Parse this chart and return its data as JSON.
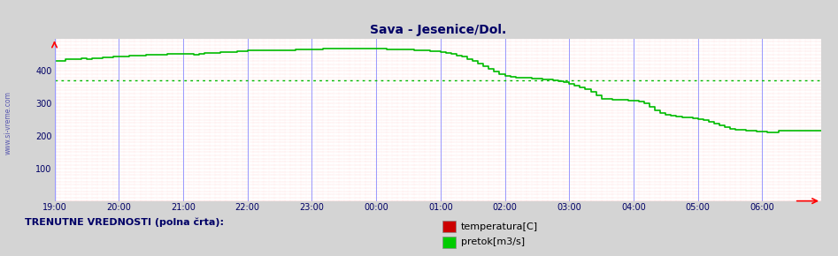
{
  "title": "Sava - Jesenice/Dol.",
  "bg_color": "#ffffff",
  "plot_bg_color": "#ffffff",
  "outer_bg_color": "#d4d4d4",
  "avg_line_value": 370,
  "avg_line_color": "#00bb00",
  "flow_line_color": "#00bb00",
  "grid_red": "#ff9999",
  "grid_blue": "#9999ff",
  "ylim": [
    0,
    500
  ],
  "xlim_max": 143,
  "x_labels": [
    "19:00",
    "20:00",
    "21:00",
    "22:00",
    "23:00",
    "00:00",
    "01:00",
    "02:00",
    "03:00",
    "04:00",
    "05:00",
    "06:00"
  ],
  "yticks": [
    100,
    200,
    300,
    400
  ],
  "side_label": "www.si-vreme.com",
  "legend_label1": "temperatura[C]",
  "legend_label2": "pretok[m3/s]",
  "legend_color1": "#cc0000",
  "legend_color2": "#00cc00",
  "footer_text": "TRENUTNE VREDNOSTI (polna črta):",
  "flow_data": [
    430,
    432,
    435,
    436,
    437,
    438,
    437,
    438,
    440,
    441,
    442,
    443,
    444,
    445,
    446,
    447,
    448,
    449,
    449,
    450,
    451,
    452,
    452,
    453,
    453,
    452,
    451,
    453,
    454,
    455,
    456,
    457,
    458,
    459,
    460,
    461,
    462,
    462,
    463,
    463,
    462,
    462,
    463,
    464,
    464,
    465,
    466,
    466,
    467,
    467,
    468,
    468,
    468,
    469,
    469,
    469,
    469,
    469,
    469,
    468,
    468,
    468,
    467,
    467,
    466,
    465,
    465,
    464,
    463,
    462,
    461,
    460,
    458,
    455,
    452,
    448,
    443,
    437,
    430,
    422,
    414,
    406,
    397,
    390,
    385,
    382,
    380,
    379,
    378,
    377,
    376,
    375,
    373,
    371,
    368,
    365,
    361,
    356,
    350,
    343,
    335,
    325,
    315,
    313,
    312,
    311,
    310,
    309,
    308,
    307,
    300,
    290,
    280,
    270,
    265,
    262,
    260,
    258,
    256,
    254,
    252,
    248,
    244,
    238,
    232,
    226,
    222,
    220,
    218,
    216,
    215,
    214,
    213,
    212,
    211,
    215,
    215,
    215,
    215,
    215,
    215,
    215,
    215,
    215
  ]
}
